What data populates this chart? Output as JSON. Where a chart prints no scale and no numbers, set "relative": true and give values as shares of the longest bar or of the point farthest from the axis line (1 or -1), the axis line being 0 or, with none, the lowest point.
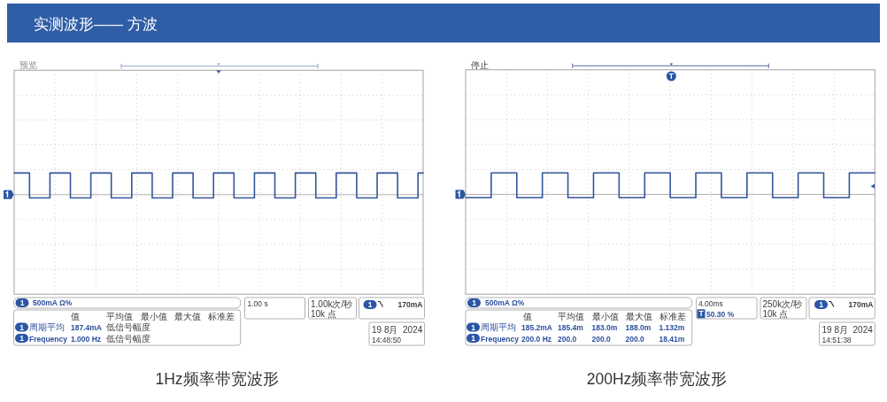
{
  "chart_data": [
    {
      "type": "step",
      "title": "1Hz频率带宽波形",
      "relative": true,
      "grid": true,
      "categories": [
        null,
        null,
        null,
        null,
        null,
        null,
        null,
        null,
        null,
        null,
        null,
        null,
        null,
        null,
        null,
        null,
        null,
        null,
        null,
        null,
        null,
        null,
        null,
        null,
        null,
        null,
        null,
        null,
        null,
        null,
        null,
        null,
        null,
        null,
        null,
        null,
        null,
        null,
        null,
        null,
        null,
        null,
        null,
        null,
        null,
        null,
        null,
        null,
        null,
        null,
        null,
        null,
        null,
        null,
        null,
        null,
        null,
        null,
        null,
        null,
        null,
        null,
        null,
        null,
        null,
        null,
        null,
        null,
        null,
        null,
        null,
        null,
        null,
        null,
        null,
        null,
        null,
        null,
        null,
        null,
        null
      ],
      "series": [
        {
          "color": "#34559c",
          "values": [
            1,
            1,
            1,
            -0.15,
            -0.15,
            -0.15,
            -0.15,
            1,
            1,
            1,
            1,
            -0.15,
            -0.15,
            -0.15,
            -0.15,
            1,
            1,
            1,
            1,
            -0.15,
            -0.15,
            -0.15,
            -0.15,
            1,
            1,
            1,
            1,
            -0.15,
            -0.15,
            -0.15,
            -0.15,
            1,
            1,
            1,
            1,
            -0.15,
            -0.15,
            -0.15,
            -0.15,
            1,
            1,
            1,
            1,
            -0.15,
            -0.15,
            -0.15,
            -0.15,
            1,
            1,
            1,
            1,
            -0.15,
            -0.15,
            -0.15,
            -0.15,
            1,
            1,
            1,
            1,
            -0.15,
            -0.15,
            -0.15,
            -0.15,
            1,
            1,
            1,
            1,
            -0.15,
            -0.15,
            -0.15,
            -0.15,
            1,
            1,
            1,
            1,
            -0.15,
            -0.15,
            -0.15,
            -0.15,
            1,
            1
          ]
        }
      ],
      "annotations": [
        "实测波形—— 方波",
        "预览",
        "1",
        "500mA Ω%",
        "值",
        "平均值",
        "最小值",
        "最大值",
        "标准差",
        "1",
        "周期平均",
        "187.4mA",
        "低信号幅度",
        "1",
        "Frequency",
        "1.000 Hz",
        "低信号幅度",
        "1.00 s",
        "1.00k次/秒",
        "10k 点",
        "1",
        "170mA",
        "19 8月  2024",
        "14:48:50"
      ]
    },
    {
      "type": "step",
      "title": "200Hz频率带宽波形",
      "relative": true,
      "grid": true,
      "categories": [
        null,
        null,
        null,
        null,
        null,
        null,
        null,
        null,
        null,
        null,
        null,
        null,
        null,
        null,
        null,
        null,
        null
      ],
      "series": [
        {
          "color": "#34559c",
          "values": [
            -0.15,
            1,
            -0.15,
            1,
            -0.15,
            1,
            -0.15,
            1,
            -0.15,
            1,
            -0.15,
            1,
            -0.15,
            1,
            -0.15,
            1,
            1
          ]
        }
      ],
      "annotations": [
        "停止",
        "T",
        "1",
        "500mA Ω%",
        "值",
        "平均值",
        "最小值",
        "最大值",
        "标准差",
        "1",
        "周期平均",
        "185.2mA",
        "185.4m",
        "183.0m",
        "188.0m",
        "1.132m",
        "1",
        "Frequency",
        "200.0 Hz",
        "200.0",
        "200.0",
        "200.0",
        "18.41m",
        "4.00ms",
        "T",
        "50.30 %",
        "250k次/秒",
        "10k 点",
        "1",
        "170mA",
        "19 8月  2024",
        "14:51:38"
      ]
    }
  ]
}
